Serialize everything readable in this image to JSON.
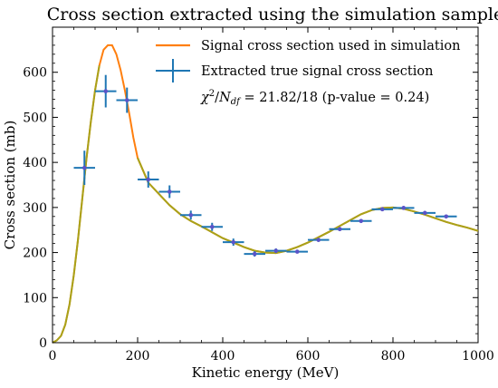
{
  "chart_data": {
    "type": "line",
    "title": "Cross section extracted using the simulation sample",
    "xlabel": "Kinetic energy (MeV)",
    "ylabel": "Cross section (mb)",
    "xlim": [
      0,
      1000
    ],
    "ylim": [
      0,
      700
    ],
    "xticks": [
      0,
      200,
      400,
      600,
      800,
      1000
    ],
    "yticks": [
      0,
      100,
      200,
      300,
      400,
      500,
      600
    ],
    "grid": false,
    "legend_position": "top-right",
    "legend": {
      "line_label": "Signal cross section used in simulation",
      "points_label": "Extracted true signal cross section",
      "stat_chi": "χ",
      "stat_chi_exp": "2",
      "stat_slash": "/",
      "stat_n": "N",
      "stat_n_sub": "df",
      "stat_value": " = 21.82/18 (p-value = 0.24)"
    },
    "colors": {
      "curve": "#ff7f0e",
      "curve_overlap": "#a8a21a",
      "points": "#1f77b4",
      "point_marker": "#5b54c8"
    },
    "series": [
      {
        "name": "Signal cross section used in simulation",
        "x": [
          0,
          10,
          20,
          30,
          40,
          50,
          60,
          70,
          80,
          90,
          100,
          110,
          120,
          130,
          140,
          150,
          160,
          170,
          180,
          190,
          200,
          225,
          250,
          275,
          300,
          325,
          350,
          375,
          400,
          425,
          450,
          475,
          500,
          525,
          550,
          575,
          600,
          625,
          650,
          675,
          700,
          725,
          750,
          775,
          800,
          825,
          850,
          875,
          900,
          925,
          950,
          975,
          1000
        ],
        "y": [
          0,
          5,
          15,
          40,
          85,
          150,
          230,
          320,
          410,
          490,
          560,
          615,
          650,
          660,
          660,
          640,
          605,
          560,
          510,
          455,
          410,
          355,
          330,
          305,
          285,
          270,
          258,
          245,
          232,
          222,
          212,
          204,
          200,
          199,
          204,
          212,
          222,
          234,
          246,
          259,
          272,
          285,
          294,
          299,
          300,
          297,
          291,
          284,
          276,
          268,
          261,
          255,
          248
        ]
      },
      {
        "name": "Extracted true signal cross section",
        "points": [
          {
            "x": 75,
            "y": 388,
            "xerr": 25,
            "yerr": 38
          },
          {
            "x": 125,
            "y": 558,
            "xerr": 25,
            "yerr": 36
          },
          {
            "x": 175,
            "y": 538,
            "xerr": 25,
            "yerr": 28
          },
          {
            "x": 225,
            "y": 362,
            "xerr": 25,
            "yerr": 18
          },
          {
            "x": 275,
            "y": 335,
            "xerr": 25,
            "yerr": 14
          },
          {
            "x": 325,
            "y": 283,
            "xerr": 25,
            "yerr": 10
          },
          {
            "x": 375,
            "y": 257,
            "xerr": 25,
            "yerr": 9
          },
          {
            "x": 425,
            "y": 223,
            "xerr": 25,
            "yerr": 8
          },
          {
            "x": 475,
            "y": 197,
            "xerr": 25,
            "yerr": 6
          },
          {
            "x": 525,
            "y": 204,
            "xerr": 25,
            "yerr": 5
          },
          {
            "x": 575,
            "y": 202,
            "xerr": 25,
            "yerr": 4
          },
          {
            "x": 625,
            "y": 228,
            "xerr": 25,
            "yerr": 4
          },
          {
            "x": 675,
            "y": 252,
            "xerr": 25,
            "yerr": 4
          },
          {
            "x": 725,
            "y": 270,
            "xerr": 25,
            "yerr": 4
          },
          {
            "x": 775,
            "y": 296,
            "xerr": 25,
            "yerr": 3
          },
          {
            "x": 825,
            "y": 299,
            "xerr": 25,
            "yerr": 3
          },
          {
            "x": 875,
            "y": 288,
            "xerr": 25,
            "yerr": 3
          },
          {
            "x": 925,
            "y": 280,
            "xerr": 25,
            "yerr": 3
          }
        ]
      }
    ]
  }
}
